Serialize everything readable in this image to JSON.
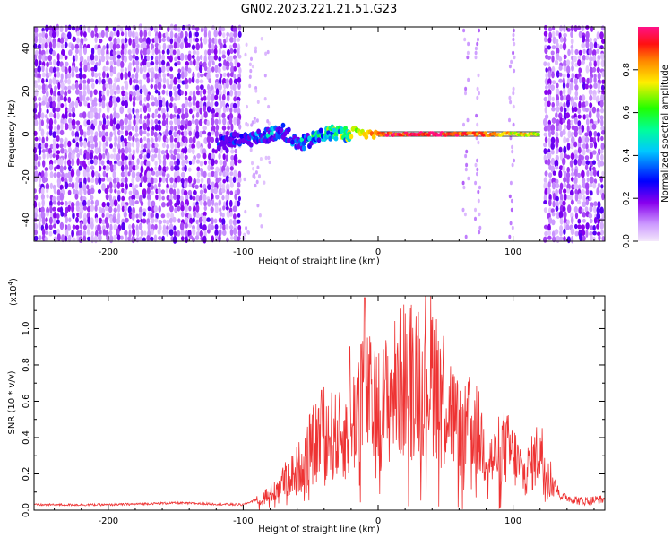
{
  "title": "GN02.2023.221.21.51.G23",
  "chart_data": [
    {
      "type": "heatmap",
      "name": "spectrogram",
      "xlabel": "Height of straight line (km)",
      "ylabel": "Frequency (Hz)",
      "xlim": [
        -255,
        168
      ],
      "ylim": [
        -50,
        50
      ],
      "xticks": [
        -200,
        -100,
        0,
        100
      ],
      "yticks": [
        -40,
        -20,
        0,
        20,
        40
      ],
      "colorbar": {
        "label": "Normalized spectral amplitude",
        "range": [
          0,
          1
        ],
        "ticks": [
          0.0,
          0.2,
          0.4,
          0.6,
          0.8
        ],
        "tick_labels": [
          "0.0",
          "0.2",
          "0.4",
          "0.6",
          "0.8"
        ]
      },
      "noise_regions": [
        [
          -255,
          -101
        ],
        [
          123,
          168
        ]
      ],
      "sparse_bands": [
        [
          63,
          67
        ],
        [
          72,
          76
        ],
        [
          97,
          101
        ]
      ],
      "signal_track": [
        {
          "x": -118,
          "freq": -4,
          "amp": 0.3
        },
        {
          "x": -110,
          "freq": -3,
          "amp": 0.3
        },
        {
          "x": -100,
          "freq": -3,
          "amp": 0.35
        },
        {
          "x": -92,
          "freq": -2,
          "amp": 0.4
        },
        {
          "x": -85,
          "freq": -1,
          "amp": 0.4
        },
        {
          "x": -78,
          "freq": 0,
          "amp": 0.4
        },
        {
          "x": -72,
          "freq": 2,
          "amp": 0.4
        },
        {
          "x": -66,
          "freq": -1,
          "amp": 0.4
        },
        {
          "x": -60,
          "freq": -5,
          "amp": 0.4
        },
        {
          "x": -55,
          "freq": -4,
          "amp": 0.45
        },
        {
          "x": -50,
          "freq": -3,
          "amp": 0.5
        },
        {
          "x": -44,
          "freq": -1,
          "amp": 0.55
        },
        {
          "x": -38,
          "freq": 0,
          "amp": 0.6
        },
        {
          "x": -32,
          "freq": 1,
          "amp": 0.65
        },
        {
          "x": -25,
          "freq": 0,
          "amp": 0.65
        },
        {
          "x": -18,
          "freq": 1,
          "amp": 0.7
        },
        {
          "x": -10,
          "freq": 0,
          "amp": 0.75
        },
        {
          "x": -3,
          "freq": 0,
          "amp": 0.85
        },
        {
          "x": 5,
          "freq": 0,
          "amp": 0.95
        },
        {
          "x": 20,
          "freq": 0,
          "amp": 0.95
        },
        {
          "x": 35,
          "freq": 0,
          "amp": 0.95
        },
        {
          "x": 50,
          "freq": 0,
          "amp": 0.95
        },
        {
          "x": 60,
          "freq": 0,
          "amp": 0.9
        },
        {
          "x": 70,
          "freq": 0,
          "amp": 0.85
        },
        {
          "x": 80,
          "freq": 0,
          "amp": 0.85
        },
        {
          "x": 90,
          "freq": 0,
          "amp": 0.8
        },
        {
          "x": 100,
          "freq": 0,
          "amp": 0.75
        },
        {
          "x": 110,
          "freq": 0,
          "amp": 0.75
        },
        {
          "x": 120,
          "freq": 0,
          "amp": 0.7
        }
      ]
    },
    {
      "type": "line",
      "name": "snr",
      "xlabel": "Height of straight line (km)",
      "ylabel": "SNR (10 * v/v)",
      "exponent_label": "(x10",
      "exponent_power": "4",
      "exponent_close": ")",
      "xlim": [
        -255,
        168
      ],
      "ylim": [
        0,
        1.18
      ],
      "xticks": [
        -200,
        -100,
        0,
        100
      ],
      "yticks": [
        0.0,
        0.2,
        0.4,
        0.6,
        0.8,
        1.0
      ],
      "ytick_labels": [
        "0.0",
        "0.2",
        "0.4",
        "0.6",
        "0.8",
        "1.0"
      ],
      "color": "#ee3333",
      "x": [
        -255,
        -200,
        -150,
        -100,
        -90,
        -80,
        -70,
        -60,
        -50,
        -40,
        -30,
        -20,
        -12,
        -5,
        0,
        10,
        20,
        30,
        40,
        48,
        55,
        62,
        70,
        78,
        85,
        92,
        100,
        108,
        115,
        120,
        125,
        135,
        150,
        168
      ],
      "y": [
        0.03,
        0.03,
        0.04,
        0.03,
        0.06,
        0.1,
        0.18,
        0.25,
        0.38,
        0.48,
        0.45,
        0.48,
        0.8,
        0.65,
        0.62,
        0.72,
        0.82,
        0.86,
        0.85,
        0.75,
        0.6,
        0.45,
        0.55,
        0.4,
        0.3,
        0.4,
        0.35,
        0.22,
        0.3,
        0.38,
        0.25,
        0.08,
        0.05,
        0.06
      ],
      "peaks": [
        {
          "x": -10,
          "y": 1.17
        },
        {
          "x": -21,
          "y": 0.9
        },
        {
          "x": -42,
          "y": 0.66
        }
      ]
    }
  ]
}
